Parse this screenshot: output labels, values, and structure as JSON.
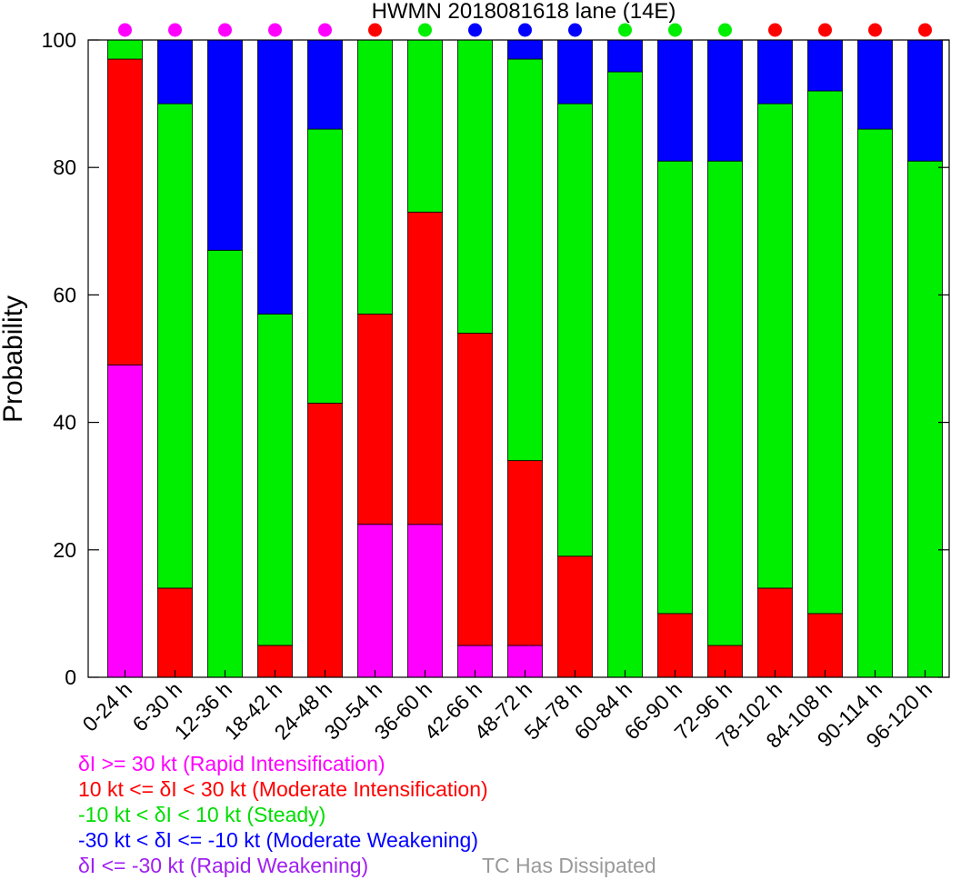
{
  "chart_data": {
    "type": "bar",
    "stacked": true,
    "title": "HWMN 2018081618 lane (14E)",
    "ylabel": "Probability",
    "xlabel": "",
    "ylim": [
      0,
      100
    ],
    "yticks": [
      "0",
      "20",
      "40",
      "60",
      "80",
      "100"
    ],
    "categories": [
      "0-24 h",
      "6-30 h",
      "12-36 h",
      "18-42 h",
      "24-48 h",
      "30-54 h",
      "36-60 h",
      "42-66 h",
      "48-72 h",
      "54-78 h",
      "60-84 h",
      "66-90 h",
      "72-96 h",
      "78-102 h",
      "84-108 h",
      "90-114 h",
      "96-120 h"
    ],
    "series": [
      {
        "name": "δI >= 30 kt (Rapid Intensification)",
        "color": "#ff00ff",
        "values": [
          49,
          0,
          0,
          0,
          0,
          24,
          24,
          5,
          5,
          0,
          0,
          0,
          0,
          0,
          0,
          0,
          0
        ]
      },
      {
        "name": "10 kt <= δI < 30 kt (Moderate Intensification)",
        "color": "#ff0000",
        "values": [
          48,
          14,
          0,
          5,
          43,
          33,
          49,
          49,
          29,
          19,
          0,
          10,
          5,
          14,
          10,
          0,
          0
        ]
      },
      {
        "name": "-10 kt < δI < 10 kt (Steady)",
        "color": "#00ee00",
        "values": [
          3,
          76,
          67,
          52,
          43,
          43,
          27,
          46,
          63,
          71,
          95,
          71,
          76,
          76,
          82,
          86,
          81
        ]
      },
      {
        "name": "-30 kt < δI <= -10 kt (Moderate Weakening)",
        "color": "#0000ff",
        "values": [
          0,
          10,
          33,
          43,
          14,
          0,
          0,
          0,
          3,
          10,
          5,
          19,
          19,
          10,
          8,
          14,
          19
        ]
      },
      {
        "name": "δI <= -30 kt (Rapid Weakening)",
        "color": "#a020f0",
        "values": [
          0,
          0,
          0,
          0,
          0,
          0,
          0,
          0,
          0,
          0,
          0,
          0,
          0,
          0,
          0,
          0,
          0
        ]
      }
    ],
    "category_markers": [
      "#ff00ff",
      "#ff00ff",
      "#ff00ff",
      "#ff00ff",
      "#ff00ff",
      "#ff0000",
      "#00ee00",
      "#0000ff",
      "#0000ff",
      "#0000ff",
      "#00ee00",
      "#00ee00",
      "#00ee00",
      "#ff0000",
      "#ff0000",
      "#ff0000",
      "#ff0000"
    ],
    "legend_placement": "bottom-left",
    "grid": false
  },
  "legend": {
    "rapid_intensification": "δI >= 30 kt (Rapid Intensification)",
    "moderate_intensification": "10 kt <= δI < 30 kt (Moderate Intensification)",
    "steady": "-10 kt < δI < 10 kt (Steady)",
    "moderate_weakening": "-30 kt < δI <= -10 kt (Moderate Weakening)",
    "rapid_weakening": "δI <= -30 kt (Rapid Weakening)",
    "dissipated": "TC Has Dissipated"
  },
  "colors": {
    "rapid_intensification": "#ff00ff",
    "moderate_intensification": "#ff0000",
    "steady": "#00ee00",
    "moderate_weakening": "#0000ff",
    "rapid_weakening": "#a020f0",
    "dissipated": "#999999"
  }
}
